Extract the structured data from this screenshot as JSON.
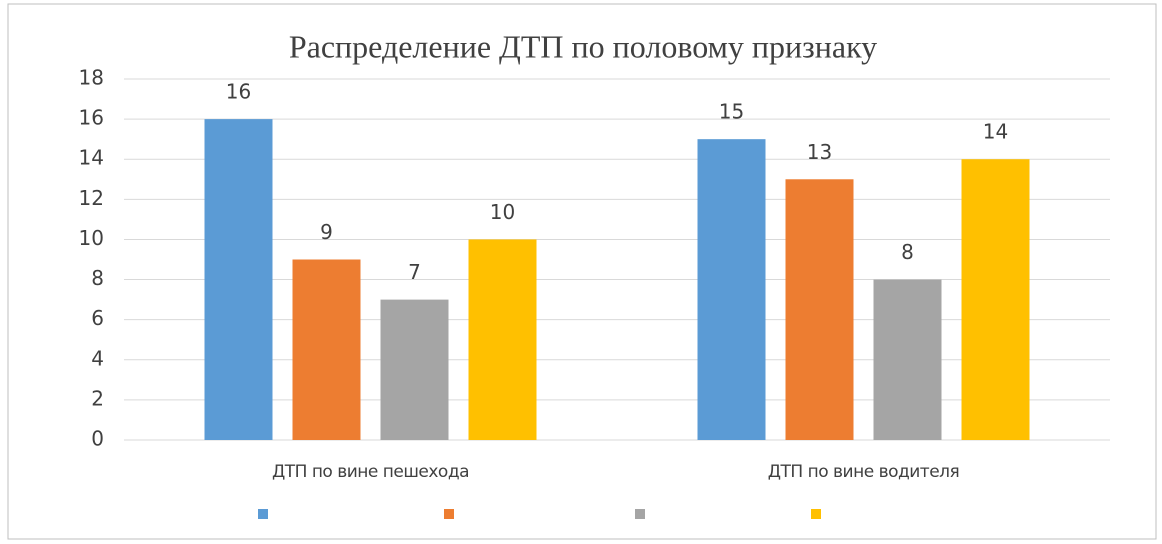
{
  "chart_data": {
    "type": "bar",
    "title": "Распределение ДТП по половому признаку",
    "categories": [
      "ДТП по вине пешехода",
      "ДТП по вине водителя"
    ],
    "series": [
      {
        "color": "#5b9bd5",
        "values": [
          16,
          15
        ]
      },
      {
        "color": "#ed7d31",
        "values": [
          9,
          13
        ]
      },
      {
        "color": "#a5a5a5",
        "values": [
          7,
          8
        ]
      },
      {
        "color": "#ffc000",
        "values": [
          10,
          14
        ]
      }
    ],
    "ylim": [
      0,
      18
    ],
    "yticks": [
      0,
      2,
      4,
      6,
      8,
      10,
      12,
      14,
      16,
      18
    ],
    "grid": true,
    "legend": "bottom"
  }
}
